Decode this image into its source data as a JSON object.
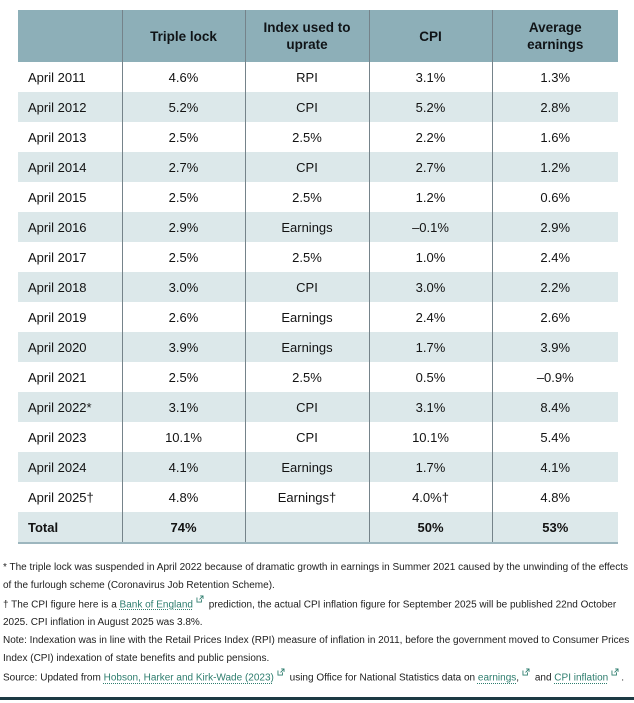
{
  "chart_data": {
    "type": "table",
    "columns": [
      "",
      "Triple lock",
      "Index used to uprate",
      "CPI",
      "Average earnings"
    ],
    "rows": [
      [
        "April 2011",
        "4.6%",
        "RPI",
        "3.1%",
        "1.3%"
      ],
      [
        "April 2012",
        "5.2%",
        "CPI",
        "5.2%",
        "2.8%"
      ],
      [
        "April 2013",
        "2.5%",
        "2.5%",
        "2.2%",
        "1.6%"
      ],
      [
        "April 2014",
        "2.7%",
        "CPI",
        "2.7%",
        "1.2%"
      ],
      [
        "April 2015",
        "2.5%",
        "2.5%",
        "1.2%",
        "0.6%"
      ],
      [
        "April 2016",
        "2.9%",
        "Earnings",
        "–0.1%",
        "2.9%"
      ],
      [
        "April 2017",
        "2.5%",
        "2.5%",
        "1.0%",
        "2.4%"
      ],
      [
        "April 2018",
        "3.0%",
        "CPI",
        "3.0%",
        "2.2%"
      ],
      [
        "April 2019",
        "2.6%",
        "Earnings",
        "2.4%",
        "2.6%"
      ],
      [
        "April 2020",
        "3.9%",
        "Earnings",
        "1.7%",
        "3.9%"
      ],
      [
        "April 2021",
        "2.5%",
        "2.5%",
        "0.5%",
        "–0.9%"
      ],
      [
        "April 2022*",
        "3.1%",
        "CPI",
        "3.1%",
        "8.4%"
      ],
      [
        "April 2023",
        "10.1%",
        "CPI",
        "10.1%",
        "5.4%"
      ],
      [
        "April 2024",
        "4.1%",
        "Earnings",
        "1.7%",
        "4.1%"
      ],
      [
        "April 2025†",
        "4.8%",
        "Earnings†",
        "4.0%†",
        "4.8%"
      ]
    ],
    "total_row": [
      "Total",
      "74%",
      "",
      "50%",
      "53%"
    ]
  },
  "footnotes": [
    {
      "segments": [
        {
          "t": "text",
          "v": "* The triple lock was suspended in April 2022 because of dramatic growth in earnings in Summer 2021 caused by the unwinding of the effects of the furlough scheme (Coronavirus Job Retention Scheme)."
        }
      ]
    },
    {
      "segments": [
        {
          "t": "text",
          "v": "† The CPI figure here is a "
        },
        {
          "t": "link",
          "v": "Bank of England"
        },
        {
          "t": "ext"
        },
        {
          "t": "text",
          "v": " prediction, the actual CPI inflation figure for September 2025 will be published 22nd October 2025. CPI inflation in August 2025 was 3.8%."
        }
      ]
    },
    {
      "segments": [
        {
          "t": "text",
          "v": "Note: Indexation was in line with the Retail Prices Index (RPI) measure of inflation in 2011, before the government moved to Consumer Prices Index (CPI) indexation of state benefits and public pensions."
        }
      ]
    },
    {
      "segments": [
        {
          "t": "text",
          "v": "Source: Updated from "
        },
        {
          "t": "link",
          "v": "Hobson, Harker and Kirk-Wade (2023)"
        },
        {
          "t": "ext"
        },
        {
          "t": "text",
          "v": " using Office for National Statistics data on "
        },
        {
          "t": "link",
          "v": "earnings"
        },
        {
          "t": "text",
          "v": ","
        },
        {
          "t": "ext"
        },
        {
          "t": "text",
          "v": " and "
        },
        {
          "t": "link",
          "v": "CPI inflation"
        },
        {
          "t": "ext"
        },
        {
          "t": "text",
          "v": "."
        }
      ]
    }
  ],
  "colors": {
    "header_bg": "#8DAFB8",
    "alt_row_bg": "#DCE8EA",
    "link": "#2E7D6E",
    "column_border": "#75838A",
    "bottom_divider": "#1C3A44"
  }
}
